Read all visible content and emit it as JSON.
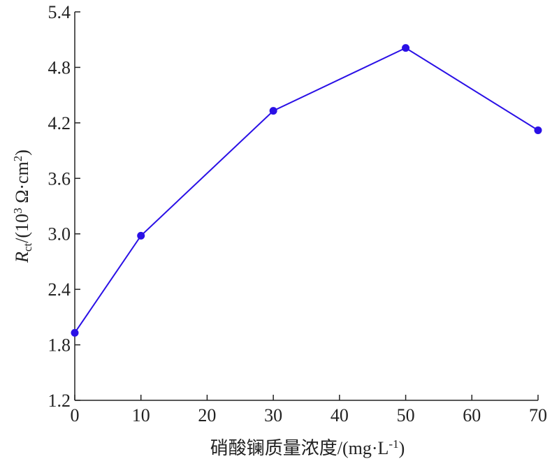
{
  "chart_data": {
    "type": "line",
    "xlabel": [
      [
        "硝酸镧质量浓度/(mg·L",
        "normal"
      ],
      [
        "-1",
        "sup"
      ],
      [
        ")",
        "normal"
      ]
    ],
    "ylabel": [
      [
        "R",
        "italic"
      ],
      [
        "ct",
        "sub"
      ],
      [
        "/(10",
        "normal"
      ],
      [
        "3",
        "sup"
      ],
      [
        " Ω·cm",
        "normal"
      ],
      [
        "2",
        "sup"
      ],
      [
        ")",
        "normal"
      ]
    ],
    "x": [
      0,
      10,
      30,
      50,
      70
    ],
    "series": [
      {
        "color": "#2a10e6",
        "values": [
          1.93,
          2.98,
          4.33,
          5.01,
          4.12
        ]
      }
    ],
    "xlim": [
      0,
      70
    ],
    "xticks": [
      0,
      10,
      20,
      30,
      40,
      50,
      60,
      70
    ],
    "ylim": [
      1.2,
      5.4
    ],
    "yticks": [
      1.2,
      1.8,
      2.4,
      {
        "value": 3,
        "label": "3.0"
      },
      3.6,
      4.2,
      4.8,
      5.4
    ],
    "markers": true,
    "grid": false
  }
}
